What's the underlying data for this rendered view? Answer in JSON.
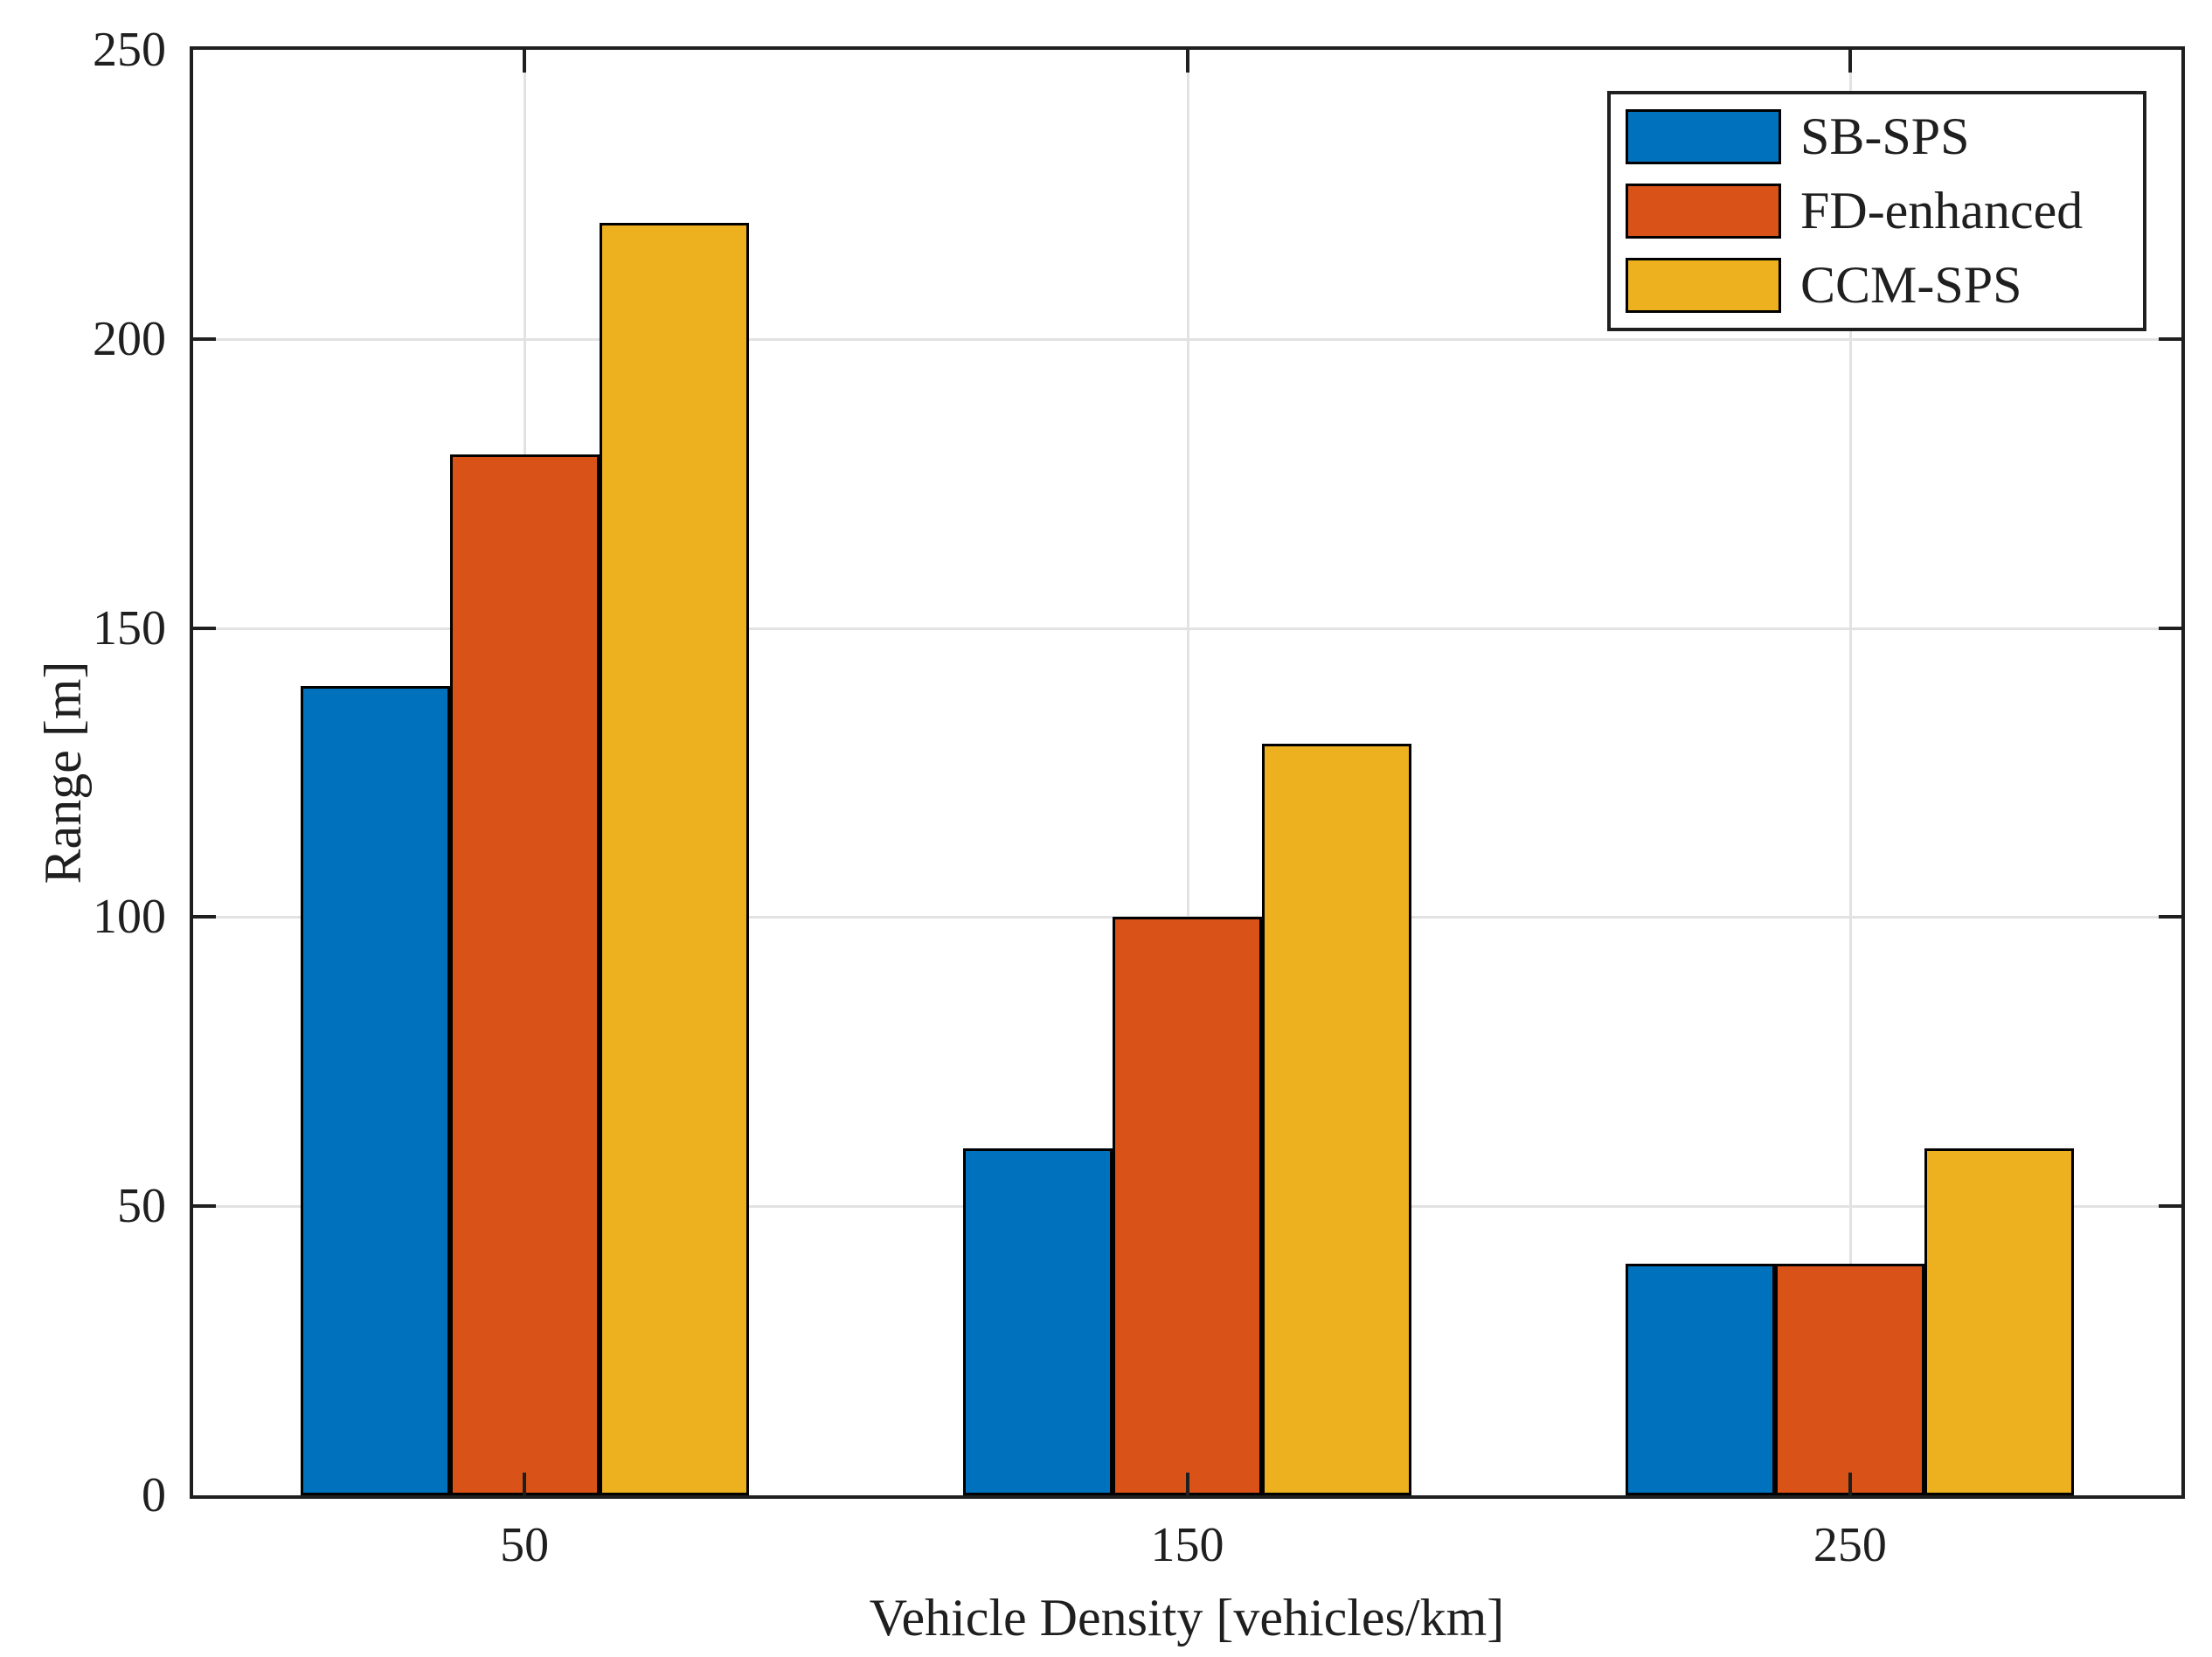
{
  "chart_data": {
    "type": "bar",
    "title": "",
    "xlabel": "Vehicle Density [vehicles/km]",
    "ylabel": "Range [m]",
    "categories": [
      "50",
      "150",
      "250"
    ],
    "series": [
      {
        "name": "SB-SPS",
        "color": "#0072BD",
        "values": [
          140,
          60,
          40
        ]
      },
      {
        "name": "FD-enhanced",
        "color": "#D95319",
        "values": [
          180,
          100,
          40
        ]
      },
      {
        "name": "CCM-SPS",
        "color": "#EDB120",
        "values": [
          220,
          130,
          60
        ]
      }
    ],
    "ylim": [
      0,
      250
    ],
    "yticks": [
      0,
      50,
      100,
      150,
      200,
      250
    ],
    "grid": true,
    "legend_position": "top-right",
    "axis_color": "#1f1f1f",
    "grid_color": "#e2e2e2",
    "bar_edge_color": "#000000"
  }
}
